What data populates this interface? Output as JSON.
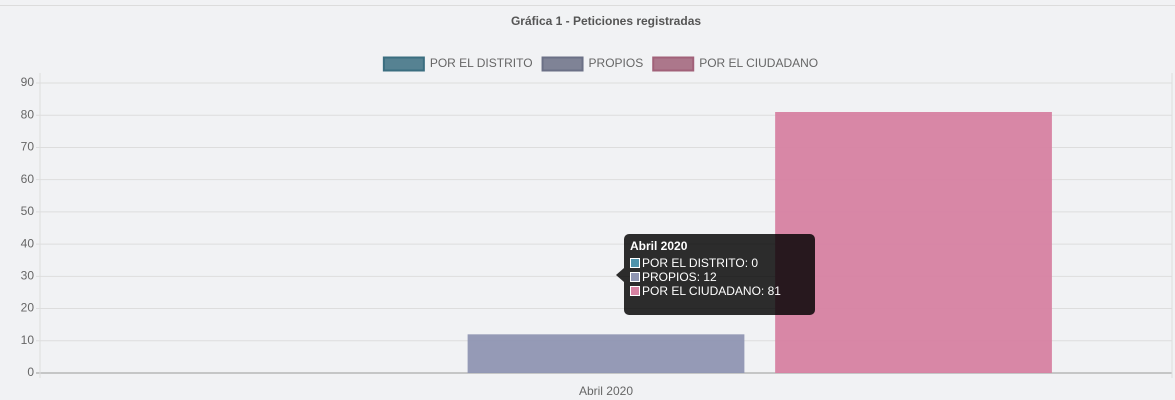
{
  "chart_data": {
    "type": "bar",
    "title": "Gráfica 1 - Peticiones registradas",
    "categories": [
      "Abril 2020"
    ],
    "series": [
      {
        "name": "POR EL DISTRITO",
        "color": "#4f93ab",
        "values": [
          0
        ]
      },
      {
        "name": "PROPIOS",
        "color": "#8f95b2",
        "values": [
          12
        ]
      },
      {
        "name": "POR EL CIUDADANO",
        "color": "#d681a1",
        "values": [
          81
        ]
      }
    ],
    "ylim": [
      0,
      90
    ],
    "yticks": [
      0,
      10,
      20,
      30,
      40,
      50,
      60,
      70,
      80,
      90
    ],
    "grid": true,
    "legend": "top"
  }
}
